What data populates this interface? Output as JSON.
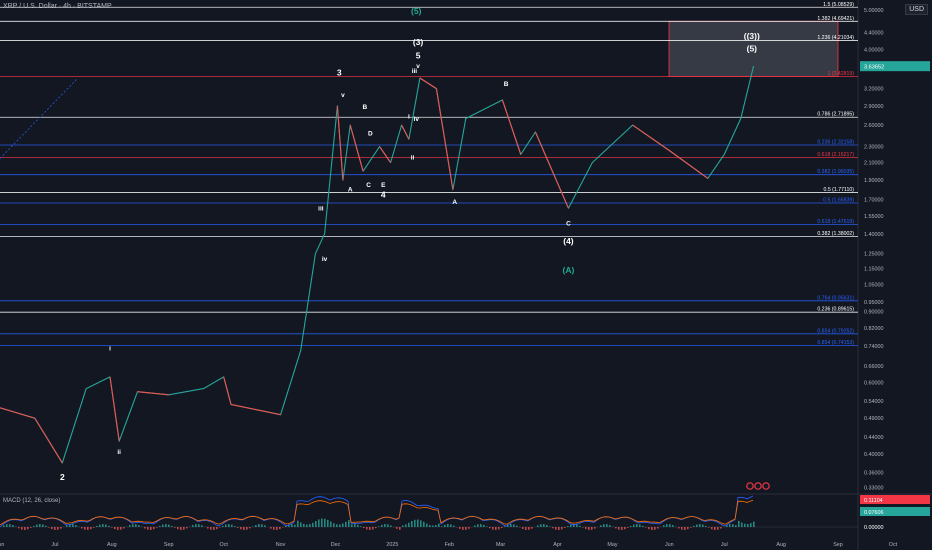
{
  "header": {
    "symbol": "XRP / U.S. Dollar · 4h · BITSTAMP",
    "currency": "USD"
  },
  "macd": {
    "label": "MACD (12, 26, close)",
    "values": [
      "0.11104",
      "0.07606",
      "0.00000"
    ],
    "axis_ticks": [
      "0.33000",
      "0.00000"
    ]
  },
  "colors": {
    "bg": "#131722",
    "up": "#26a69a",
    "down": "#ef5350",
    "white": "#ffffff",
    "red": "#f23645",
    "blue": "#2962ff",
    "green": "#22ab94",
    "box": "#787b86"
  },
  "chart_data": {
    "type": "line",
    "title": "XRP / U.S. Dollar · 4h · BITSTAMP",
    "y_scale": "log",
    "y_ticks": [
      "5.00000",
      "4.40000",
      "4.00000",
      "3.60000",
      "3.20000",
      "2.90000",
      "2.60000",
      "2.30000",
      "2.10000",
      "1.90000",
      "1.70000",
      "1.55000",
      "1.40000",
      "1.25000",
      "1.15000",
      "1.05000",
      "0.95000",
      "0.90000",
      "0.82000",
      "0.74000",
      "0.66000",
      "0.60000",
      "0.54000",
      "0.49000",
      "0.44000",
      "0.40000",
      "0.36000",
      "0.33000"
    ],
    "y_tick_values": [
      5.0,
      4.4,
      4.0,
      3.6,
      3.2,
      2.9,
      2.6,
      2.3,
      2.1,
      1.9,
      1.7,
      1.55,
      1.4,
      1.25,
      1.15,
      1.05,
      0.95,
      0.9,
      0.82,
      0.74,
      0.66,
      0.6,
      0.54,
      0.49,
      0.44,
      0.4,
      0.36,
      0.33
    ],
    "x_ticks": [
      "Jun",
      "Jul",
      "Aug",
      "Sep",
      "Oct",
      "Nov",
      "Dec",
      "2025",
      "Feb",
      "Mar",
      "Apr",
      "May",
      "Jun",
      "Jul",
      "Aug",
      "Sep",
      "Oct"
    ],
    "current_price": "3.63652",
    "current_price_value": 3.63652,
    "series": [
      {
        "values": [
          [
            "2024-06-01",
            0.52
          ],
          [
            "2024-06-20",
            0.49
          ],
          [
            "2024-07-05",
            0.38
          ],
          [
            "2024-07-18",
            0.58
          ],
          [
            "2024-07-31",
            0.62
          ],
          [
            "2024-08-05",
            0.43
          ],
          [
            "2024-08-15",
            0.57
          ],
          [
            "2024-09-01",
            0.56
          ],
          [
            "2024-09-20",
            0.58
          ],
          [
            "2024-10-01",
            0.62
          ],
          [
            "2024-10-05",
            0.53
          ],
          [
            "2024-11-01",
            0.5
          ],
          [
            "2024-11-12",
            0.72
          ],
          [
            "2024-11-20",
            1.25
          ],
          [
            "2024-11-25",
            1.4
          ],
          [
            "2024-12-02",
            2.9
          ],
          [
            "2024-12-05",
            1.9
          ],
          [
            "2024-12-09",
            2.6
          ],
          [
            "2024-12-16",
            2.0
          ],
          [
            "2024-12-25",
            2.3
          ],
          [
            "2024-12-31",
            2.1
          ],
          [
            "2025-01-06",
            2.6
          ],
          [
            "2025-01-10",
            2.4
          ],
          [
            "2025-01-16",
            3.4
          ],
          [
            "2025-01-25",
            3.2
          ],
          [
            "2025-02-03",
            1.8
          ],
          [
            "2025-02-10",
            2.7
          ],
          [
            "2025-03-02",
            3.0
          ],
          [
            "2025-03-12",
            2.2
          ],
          [
            "2025-03-20",
            2.5
          ],
          [
            "2025-04-07",
            1.62
          ],
          [
            "2025-04-20",
            2.1
          ],
          [
            "2025-05-12",
            2.6
          ],
          [
            "2025-06-01",
            2.25
          ],
          [
            "2025-06-22",
            1.92
          ],
          [
            "2025-07-01",
            2.2
          ],
          [
            "2025-07-10",
            2.7
          ],
          [
            "2025-07-17",
            3.64
          ]
        ]
      }
    ],
    "fib_levels": [
      {
        "label": "1.5 (5.08529)",
        "value": 5.08529,
        "color": "#ffffff"
      },
      {
        "label": "1.382 (4.69421)",
        "value": 4.69421,
        "color": "#ffffff"
      },
      {
        "label": "1.236 (4.21034)",
        "value": 4.21034,
        "color": "#ffffff"
      },
      {
        "label": "1 (3.42819)",
        "value": 3.42819,
        "color": "#f23645"
      },
      {
        "label": "0.786 (2.71895)",
        "value": 2.71895,
        "color": "#ffffff"
      },
      {
        "label": "0.236 (2.32158)",
        "value": 2.32158,
        "color": "#2962ff"
      },
      {
        "label": "0.618 (2.16217)",
        "value": 2.16217,
        "color": "#f23645"
      },
      {
        "label": "0.382 (1.96035)",
        "value": 1.96035,
        "color": "#2962ff"
      },
      {
        "label": "0.5 (1.77110)",
        "value": 1.7711,
        "color": "#ffffff"
      },
      {
        "label": "0.5 (1.66839)",
        "value": 1.66839,
        "color": "#2962ff"
      },
      {
        "label": "0.618 (1.47619)",
        "value": 1.47619,
        "color": "#2962ff"
      },
      {
        "label": "0.382 (1.38002)",
        "value": 1.38002,
        "color": "#ffffff"
      },
      {
        "label": "0.764 (0.95631)",
        "value": 0.95631,
        "color": "#2962ff"
      },
      {
        "label": "0.236 (0.89615)",
        "value": 0.89615,
        "color": "#ffffff"
      },
      {
        "label": "0.854 (0.79252)",
        "value": 0.79252,
        "color": "#2962ff"
      },
      {
        "label": "0.854 (0.74153)",
        "value": 0.74153,
        "color": "#2962ff"
      }
    ],
    "wave_labels": [
      {
        "text": "2",
        "date": "2024-07-05",
        "price": 0.345,
        "color": "#ffffff"
      },
      {
        "text": "i",
        "date": "2024-07-31",
        "price": 0.72,
        "color": "#ffffff"
      },
      {
        "text": "ii",
        "date": "2024-08-05",
        "price": 0.4,
        "color": "#ffffff"
      },
      {
        "text": "iv",
        "date": "2024-11-25",
        "price": 1.2,
        "color": "#ffffff"
      },
      {
        "text": "iii",
        "date": "2024-11-23",
        "price": 1.6,
        "color": "#ffffff"
      },
      {
        "text": "3",
        "date": "2024-12-03",
        "price": 3.45,
        "color": "#ffffff"
      },
      {
        "text": "v",
        "date": "2024-12-05",
        "price": 3.05,
        "color": "#ffffff"
      },
      {
        "text": "B",
        "date": "2024-12-17",
        "price": 2.85,
        "color": "#ffffff"
      },
      {
        "text": "D",
        "date": "2024-12-20",
        "price": 2.45,
        "color": "#ffffff"
      },
      {
        "text": "A",
        "date": "2024-12-09",
        "price": 1.78,
        "color": "#ffffff"
      },
      {
        "text": "C",
        "date": "2024-12-19",
        "price": 1.83,
        "color": "#ffffff"
      },
      {
        "text": "E",
        "date": "2024-12-27",
        "price": 1.83,
        "color": "#ffffff"
      },
      {
        "text": "4",
        "date": "2024-12-27",
        "price": 1.72,
        "color": "#ffffff"
      },
      {
        "text": "i",
        "date": "2025-01-10",
        "price": 2.7,
        "color": "#ffffff"
      },
      {
        "text": "ii",
        "date": "2025-01-12",
        "price": 2.14,
        "color": "#ffffff"
      },
      {
        "text": "iv",
        "date": "2025-01-14",
        "price": 2.66,
        "color": "#ffffff"
      },
      {
        "text": "iii",
        "date": "2025-01-13",
        "price": 3.5,
        "color": "#ffffff"
      },
      {
        "text": "(5)",
        "date": "2025-01-14",
        "price": 4.9,
        "color": "#22ab94"
      },
      {
        "text": "(3)",
        "date": "2025-01-15",
        "price": 4.1,
        "color": "#ffffff"
      },
      {
        "text": "5",
        "date": "2025-01-15",
        "price": 3.8,
        "color": "#ffffff"
      },
      {
        "text": "v",
        "date": "2025-01-15",
        "price": 3.6,
        "color": "#ffffff"
      },
      {
        "text": "A",
        "date": "2025-02-04",
        "price": 1.66,
        "color": "#ffffff"
      },
      {
        "text": "B",
        "date": "2025-03-04",
        "price": 3.25,
        "color": "#ffffff"
      },
      {
        "text": "C",
        "date": "2025-04-07",
        "price": 1.47,
        "color": "#ffffff"
      },
      {
        "text": "(4)",
        "date": "2025-04-07",
        "price": 1.32,
        "color": "#ffffff"
      },
      {
        "text": "(A)",
        "date": "2025-04-07",
        "price": 1.12,
        "color": "#22ab94"
      },
      {
        "text": "((3))",
        "date": "2025-07-16",
        "price": 4.25,
        "color": "#ffffff"
      },
      {
        "text": "(5)",
        "date": "2025-07-16",
        "price": 3.95,
        "color": "#ffffff"
      }
    ]
  }
}
